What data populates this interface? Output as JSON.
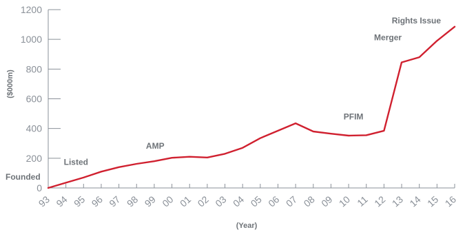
{
  "chart_data": {
    "type": "line",
    "xlabel": "(Year)",
    "ylabel": "($000m)",
    "ylim": [
      0,
      1200
    ],
    "yticks": [
      0,
      200,
      400,
      600,
      800,
      1000,
      1200
    ],
    "grid": false,
    "categories": [
      "93",
      "94",
      "95",
      "96",
      "97",
      "98",
      "99",
      "00",
      "01",
      "02",
      "03",
      "04",
      "05",
      "06",
      "07",
      "08",
      "09",
      "10",
      "11",
      "12",
      "13",
      "14",
      "15",
      "16"
    ],
    "series": [
      {
        "color": "#d0202f",
        "values": [
          0,
          35,
          70,
          110,
          140,
          162,
          180,
          203,
          210,
          205,
          230,
          270,
          335,
          385,
          435,
          380,
          365,
          352,
          355,
          385,
          845,
          880,
          990,
          1085
        ]
      }
    ],
    "annotations": [
      {
        "text": "Founded",
        "category": "93"
      },
      {
        "text": "Listed",
        "category": "94"
      },
      {
        "text": "AMP",
        "category": "99"
      },
      {
        "text": "PFIM",
        "category": "11"
      },
      {
        "text": "Merger",
        "category": "13"
      },
      {
        "text": "Rights Issue",
        "category": "14"
      }
    ]
  }
}
